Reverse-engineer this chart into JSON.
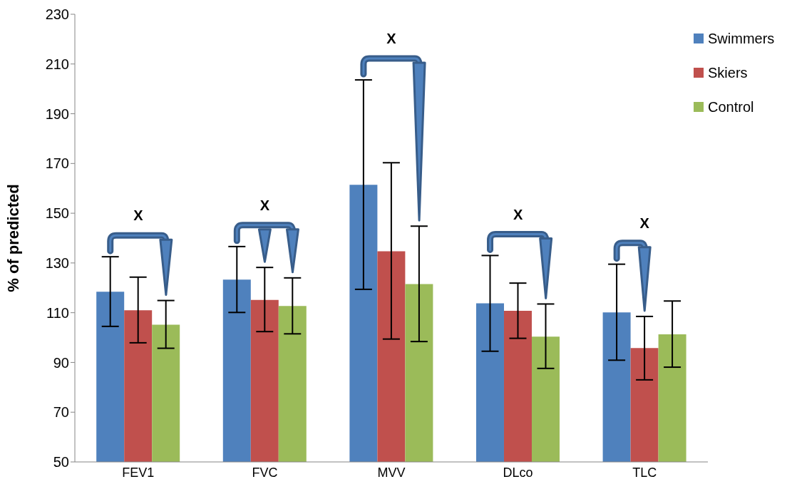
{
  "chart_data": {
    "type": "bar",
    "ylabel": "% of predicted",
    "categories": [
      "FEV1",
      "FVC",
      "MVV",
      "DLco",
      "TLC"
    ],
    "series": [
      {
        "name": "Swimmers",
        "color": "#4f81bd",
        "values": [
          118.4,
          123.3,
          161.4,
          113.8,
          110.1
        ],
        "errors": [
          [
            104.5,
            132.5
          ],
          [
            110.1,
            136.6
          ],
          [
            119.4,
            203.6
          ],
          [
            94.5,
            133.0
          ],
          [
            90.9,
            129.5
          ]
        ]
      },
      {
        "name": "Skiers",
        "color": "#c0504d",
        "values": [
          111.0,
          115.1,
          134.7,
          110.8,
          95.8
        ],
        "errors": [
          [
            97.9,
            124.3
          ],
          [
            102.4,
            128.2
          ],
          [
            99.4,
            170.3
          ],
          [
            99.7,
            121.9
          ],
          [
            83.0,
            108.5
          ]
        ]
      },
      {
        "name": "Control",
        "color": "#9bbb59",
        "values": [
          105.2,
          112.7,
          121.5,
          100.4,
          101.3
        ],
        "errors": [
          [
            95.7,
            114.9
          ],
          [
            101.5,
            124.0
          ],
          [
            98.4,
            144.8
          ],
          [
            87.6,
            113.5
          ],
          [
            88.1,
            114.7
          ]
        ]
      }
    ],
    "ylim": [
      50,
      230
    ],
    "yticks": [
      50,
      70,
      90,
      110,
      130,
      150,
      170,
      190,
      210,
      230
    ],
    "grid": false,
    "legend": "top right",
    "annotations": [
      "X",
      "X",
      "X",
      "X",
      "X"
    ]
  }
}
